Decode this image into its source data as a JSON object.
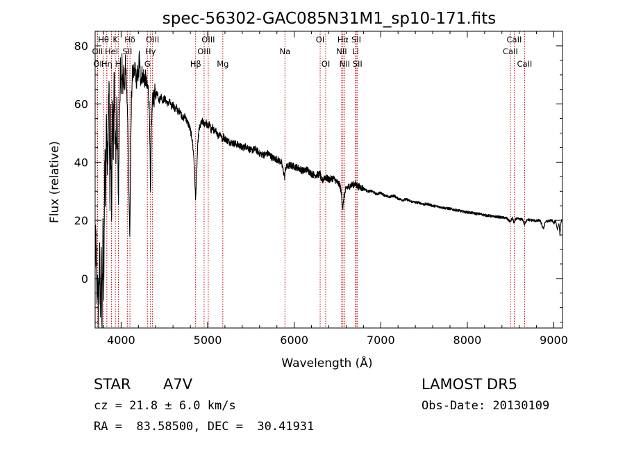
{
  "info": {
    "object_class": "STAR",
    "subclass": "A7V",
    "survey": "LAMOST DR5",
    "cz": "cz = 21.8 ± 6.0 km/s",
    "obs_date": "Obs-Date: 20130109",
    "coords": "RA =  83.58500, DEC =  30.41931"
  },
  "chart_data": {
    "type": "line",
    "title": "spec-56302-GAC085N31M1_sp10-171.fits",
    "xlabel": "Wavelength (Å)",
    "ylabel": "Flux (relative)",
    "xlim": [
      3700,
      9100
    ],
    "ylim": [
      -17,
      85
    ],
    "x_ticks": [
      4000,
      5000,
      6000,
      7000,
      8000,
      9000
    ],
    "y_ticks": [
      0,
      20,
      40,
      60,
      80
    ],
    "line_color": "#000000",
    "marker_color": "#c00000",
    "spectrum": [
      [
        3700,
        5
      ],
      [
        3710,
        14
      ],
      [
        3720,
        -8
      ],
      [
        3730,
        2
      ],
      [
        3740,
        -15
      ],
      [
        3750,
        10
      ],
      [
        3760,
        -12
      ],
      [
        3770,
        8
      ],
      [
        3780,
        -16
      ],
      [
        3790,
        15
      ],
      [
        3800,
        -5
      ],
      [
        3810,
        42
      ],
      [
        3820,
        30
      ],
      [
        3830,
        60
      ],
      [
        3840,
        35
      ],
      [
        3850,
        50
      ],
      [
        3860,
        68
      ],
      [
        3870,
        25
      ],
      [
        3880,
        55
      ],
      [
        3890,
        20
      ],
      [
        3900,
        60
      ],
      [
        3910,
        45
      ],
      [
        3920,
        70
      ],
      [
        3930,
        50
      ],
      [
        3940,
        38
      ],
      [
        3950,
        62
      ],
      [
        3960,
        42
      ],
      [
        3970,
        30
      ],
      [
        3980,
        55
      ],
      [
        3990,
        70
      ],
      [
        4000,
        62
      ],
      [
        4010,
        75
      ],
      [
        4020,
        66
      ],
      [
        4030,
        72
      ],
      [
        4040,
        64
      ],
      [
        4050,
        74
      ],
      [
        4060,
        68
      ],
      [
        4070,
        60
      ],
      [
        4080,
        50
      ],
      [
        4090,
        30
      ],
      [
        4100,
        14
      ],
      [
        4110,
        40
      ],
      [
        4120,
        62
      ],
      [
        4130,
        70
      ],
      [
        4140,
        72
      ],
      [
        4150,
        68
      ],
      [
        4160,
        73
      ],
      [
        4170,
        70
      ],
      [
        4180,
        67
      ],
      [
        4190,
        71
      ],
      [
        4200,
        69
      ],
      [
        4210,
        77
      ],
      [
        4220,
        70
      ],
      [
        4230,
        68
      ],
      [
        4240,
        71
      ],
      [
        4250,
        69
      ],
      [
        4260,
        70
      ],
      [
        4270,
        68
      ],
      [
        4280,
        69
      ],
      [
        4290,
        68
      ],
      [
        4300,
        65
      ],
      [
        4310,
        66
      ],
      [
        4320,
        62
      ],
      [
        4330,
        54
      ],
      [
        4340,
        27
      ],
      [
        4350,
        52
      ],
      [
        4360,
        60
      ],
      [
        4370,
        63
      ],
      [
        4380,
        61
      ],
      [
        4390,
        64
      ],
      [
        4400,
        63
      ],
      [
        4420,
        64
      ],
      [
        4440,
        61
      ],
      [
        4460,
        63
      ],
      [
        4480,
        61
      ],
      [
        4500,
        62
      ],
      [
        4520,
        61
      ],
      [
        4540,
        60
      ],
      [
        4560,
        61
      ],
      [
        4580,
        59
      ],
      [
        4600,
        60
      ],
      [
        4620,
        58
      ],
      [
        4640,
        59
      ],
      [
        4660,
        57
      ],
      [
        4680,
        58
      ],
      [
        4700,
        56
      ],
      [
        4720,
        55
      ],
      [
        4740,
        56
      ],
      [
        4760,
        54
      ],
      [
        4780,
        53
      ],
      [
        4800,
        51
      ],
      [
        4820,
        48
      ],
      [
        4840,
        42
      ],
      [
        4850,
        36
      ],
      [
        4860,
        27
      ],
      [
        4870,
        34
      ],
      [
        4880,
        42
      ],
      [
        4890,
        48
      ],
      [
        4900,
        51
      ],
      [
        4920,
        53
      ],
      [
        4940,
        54
      ],
      [
        4960,
        53
      ],
      [
        4980,
        54
      ],
      [
        5000,
        52
      ],
      [
        5020,
        53
      ],
      [
        5040,
        51
      ],
      [
        5060,
        52
      ],
      [
        5080,
        50
      ],
      [
        5100,
        51
      ],
      [
        5120,
        49
      ],
      [
        5140,
        50
      ],
      [
        5160,
        49
      ],
      [
        5170,
        47
      ],
      [
        5180,
        49
      ],
      [
        5200,
        48
      ],
      [
        5250,
        47
      ],
      [
        5300,
        46.5
      ],
      [
        5350,
        46
      ],
      [
        5400,
        45
      ],
      [
        5450,
        45.5
      ],
      [
        5500,
        44
      ],
      [
        5550,
        44.5
      ],
      [
        5600,
        43
      ],
      [
        5650,
        42.5
      ],
      [
        5700,
        43
      ],
      [
        5750,
        41.5
      ],
      [
        5800,
        41
      ],
      [
        5850,
        40
      ],
      [
        5890,
        35
      ],
      [
        5900,
        38
      ],
      [
        5950,
        39
      ],
      [
        6000,
        38.5
      ],
      [
        6050,
        38
      ],
      [
        6100,
        37
      ],
      [
        6150,
        37.5
      ],
      [
        6200,
        36
      ],
      [
        6250,
        35.5
      ],
      [
        6300,
        36
      ],
      [
        6320,
        33
      ],
      [
        6350,
        35
      ],
      [
        6400,
        34
      ],
      [
        6450,
        34.5
      ],
      [
        6500,
        33
      ],
      [
        6530,
        32
      ],
      [
        6550,
        28
      ],
      [
        6563,
        24
      ],
      [
        6575,
        28
      ],
      [
        6600,
        31
      ],
      [
        6650,
        32
      ],
      [
        6700,
        32.5
      ],
      [
        6750,
        31.5
      ],
      [
        6800,
        31
      ],
      [
        6850,
        30
      ],
      [
        6900,
        30
      ],
      [
        6950,
        29
      ],
      [
        7000,
        29.5
      ],
      [
        7050,
        28.5
      ],
      [
        7100,
        28
      ],
      [
        7150,
        28.5
      ],
      [
        7200,
        27.5
      ],
      [
        7250,
        27
      ],
      [
        7300,
        27.2
      ],
      [
        7350,
        26.5
      ],
      [
        7400,
        26.2
      ],
      [
        7450,
        26
      ],
      [
        7500,
        25.5
      ],
      [
        7550,
        25.6
      ],
      [
        7600,
        25
      ],
      [
        7650,
        24.8
      ],
      [
        7700,
        24.5
      ],
      [
        7750,
        24.2
      ],
      [
        7800,
        24
      ],
      [
        7850,
        23.6
      ],
      [
        7900,
        23.4
      ],
      [
        7950,
        23
      ],
      [
        8000,
        22.8
      ],
      [
        8050,
        22.6
      ],
      [
        8100,
        22.3
      ],
      [
        8150,
        22.2
      ],
      [
        8200,
        21.8
      ],
      [
        8250,
        21.6
      ],
      [
        8300,
        21.3
      ],
      [
        8350,
        21.2
      ],
      [
        8400,
        21
      ],
      [
        8450,
        20.8
      ],
      [
        8498,
        19.5
      ],
      [
        8520,
        20.8
      ],
      [
        8542,
        19
      ],
      [
        8560,
        20.6
      ],
      [
        8600,
        20.4
      ],
      [
        8640,
        20.3
      ],
      [
        8662,
        18.5
      ],
      [
        8690,
        20.4
      ],
      [
        8720,
        20.1
      ],
      [
        8760,
        20
      ],
      [
        8800,
        19.8
      ],
      [
        8840,
        20
      ],
      [
        8880,
        17
      ],
      [
        8900,
        19.5
      ],
      [
        8940,
        19.8
      ],
      [
        8980,
        20
      ],
      [
        9000,
        19
      ],
      [
        9020,
        20
      ],
      [
        9040,
        17
      ],
      [
        9060,
        19
      ],
      [
        9070,
        15
      ],
      [
        9080,
        19
      ],
      [
        9090,
        20
      ]
    ],
    "spectrum_noise": {
      "rules": [
        [
          3700,
          4000,
          8
        ],
        [
          4000,
          4400,
          3
        ],
        [
          4400,
          6800,
          1.2
        ],
        [
          6800,
          9100,
          0.45
        ]
      ],
      "step": 2
    },
    "lines": [
      {
        "label": "Hθ",
        "x": 3797,
        "row": 0
      },
      {
        "label": "K",
        "x": 3934,
        "row": 0
      },
      {
        "label": "Hδ",
        "x": 4102,
        "row": 0
      },
      {
        "label": "OIII",
        "x": 4363,
        "row": 0
      },
      {
        "label": "OIII",
        "x": 5007,
        "row": 0
      },
      {
        "label": "OI",
        "x": 6300,
        "row": 0
      },
      {
        "label": "Hα",
        "x": 6563,
        "row": 0
      },
      {
        "label": "SII",
        "x": 6717,
        "row": 0
      },
      {
        "label": "CaII",
        "x": 8542,
        "row": 0
      },
      {
        "label": "OII",
        "x": 3727,
        "row": 1
      },
      {
        "label": "HeI",
        "x": 3889,
        "row": 1
      },
      {
        "label": "SII",
        "x": 4072,
        "row": 1
      },
      {
        "label": "Hγ",
        "x": 4340,
        "row": 1
      },
      {
        "label": "OIII",
        "x": 4959,
        "row": 1
      },
      {
        "label": "Na",
        "x": 5893,
        "row": 1
      },
      {
        "label": "NII",
        "x": 6548,
        "row": 1
      },
      {
        "label": "Li",
        "x": 6708,
        "row": 1
      },
      {
        "label": "CaII",
        "x": 8498,
        "row": 1
      },
      {
        "label": "OI",
        "x": 3729,
        "row": 2
      },
      {
        "label": "Hη",
        "x": 3835,
        "row": 2
      },
      {
        "label": "H",
        "x": 3969,
        "row": 2
      },
      {
        "label": "G",
        "x": 4304,
        "row": 2
      },
      {
        "label": "Hβ",
        "x": 4861,
        "row": 2
      },
      {
        "label": "Mg",
        "x": 5175,
        "row": 2
      },
      {
        "label": "OI",
        "x": 6364,
        "row": 2
      },
      {
        "label": "NII",
        "x": 6583,
        "row": 2
      },
      {
        "label": "SII",
        "x": 6731,
        "row": 2
      },
      {
        "label": "CaII",
        "x": 8662,
        "row": 2
      }
    ]
  }
}
